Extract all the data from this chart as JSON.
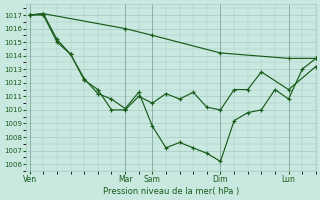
{
  "bg_color": "#c8e8e0",
  "grid_color": "#a8c8c4",
  "line_color": "#1a5c1a",
  "title": "Pression niveau de la mer( hPa )",
  "ylim": [
    1005.5,
    1017.8
  ],
  "yticks": [
    1006,
    1007,
    1008,
    1009,
    1010,
    1011,
    1012,
    1013,
    1014,
    1015,
    1016,
    1017
  ],
  "xtick_labels": [
    "Ven",
    "Mar",
    "Sam",
    "Dim",
    "Lun"
  ],
  "xtick_positions": [
    0,
    14,
    18,
    28,
    38
  ],
  "xlim": [
    -0.5,
    42
  ],
  "series_top": {
    "x": [
      0,
      2,
      14,
      18,
      28,
      38,
      42
    ],
    "y": [
      1017.0,
      1017.1,
      1016.0,
      1015.5,
      1014.2,
      1013.8,
      1013.8
    ]
  },
  "series_mid": {
    "x": [
      0,
      2,
      4,
      6,
      8,
      10,
      12,
      14,
      16,
      18,
      20,
      22,
      24,
      26,
      28,
      30,
      32,
      34,
      38,
      42
    ],
    "y": [
      1017.0,
      1017.0,
      1015.0,
      1014.1,
      1012.2,
      1011.5,
      1010.0,
      1010.0,
      1011.0,
      1010.5,
      1011.2,
      1010.8,
      1011.3,
      1010.2,
      1010.0,
      1011.5,
      1011.5,
      1012.8,
      1011.5,
      1013.2
    ]
  },
  "series_low": {
    "x": [
      0,
      2,
      4,
      6,
      8,
      10,
      12,
      14,
      16,
      18,
      20,
      22,
      24,
      26,
      28,
      30,
      32,
      34,
      36,
      38,
      40,
      42
    ],
    "y": [
      1017.0,
      1017.1,
      1015.2,
      1014.1,
      1012.3,
      1011.2,
      1010.8,
      1010.1,
      1011.3,
      1008.8,
      1007.2,
      1007.6,
      1007.2,
      1006.8,
      1006.2,
      1009.2,
      1009.8,
      1010.0,
      1011.5,
      1010.8,
      1013.0,
      1013.8
    ]
  }
}
